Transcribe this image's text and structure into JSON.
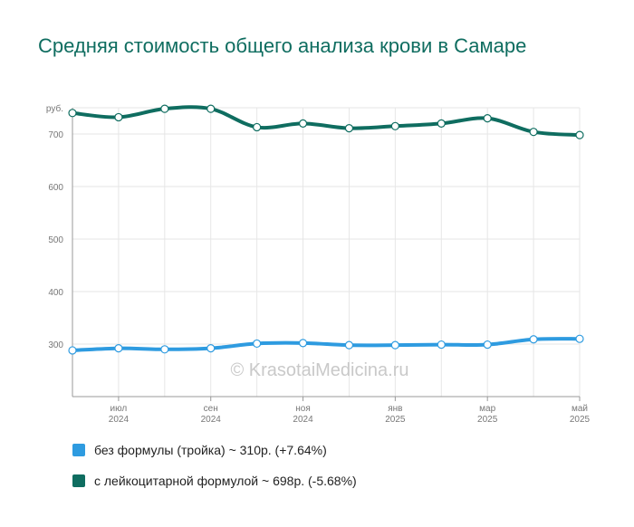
{
  "title": "Средняя стоимость общего анализа крови в Самаре",
  "watermark": "© KrasotaiMedicina.ru",
  "chart_data": {
    "type": "line",
    "ylabel": "руб.",
    "ylim": [
      200,
      750
    ],
    "yticks": [
      300,
      400,
      500,
      600,
      700
    ],
    "x": [
      0,
      1,
      2,
      3,
      4,
      5,
      6,
      7,
      8,
      9,
      10,
      11
    ],
    "x_ticks": [
      {
        "i": 1,
        "month": "июл",
        "year": "2024"
      },
      {
        "i": 3,
        "month": "сен",
        "year": "2024"
      },
      {
        "i": 5,
        "month": "ноя",
        "year": "2024"
      },
      {
        "i": 7,
        "month": "янв",
        "year": "2025"
      },
      {
        "i": 9,
        "month": "мар",
        "year": "2025"
      },
      {
        "i": 11,
        "month": "май",
        "year": "2025"
      }
    ],
    "grid": true,
    "legend_position": "bottom-left",
    "series": [
      {
        "name": "без формулы (тройка) ~ 310р. (+7.64%)",
        "color": "#2e9be0",
        "values": [
          288,
          292,
          290,
          292,
          301,
          302,
          298,
          298,
          299,
          299,
          309,
          310
        ]
      },
      {
        "name": "с лейкоцитарной формулой ~ 698р. (-5.68%)",
        "color": "#0f6d60",
        "values": [
          740,
          732,
          748,
          748,
          713,
          720,
          711,
          715,
          720,
          730,
          704,
          698
        ]
      }
    ]
  }
}
